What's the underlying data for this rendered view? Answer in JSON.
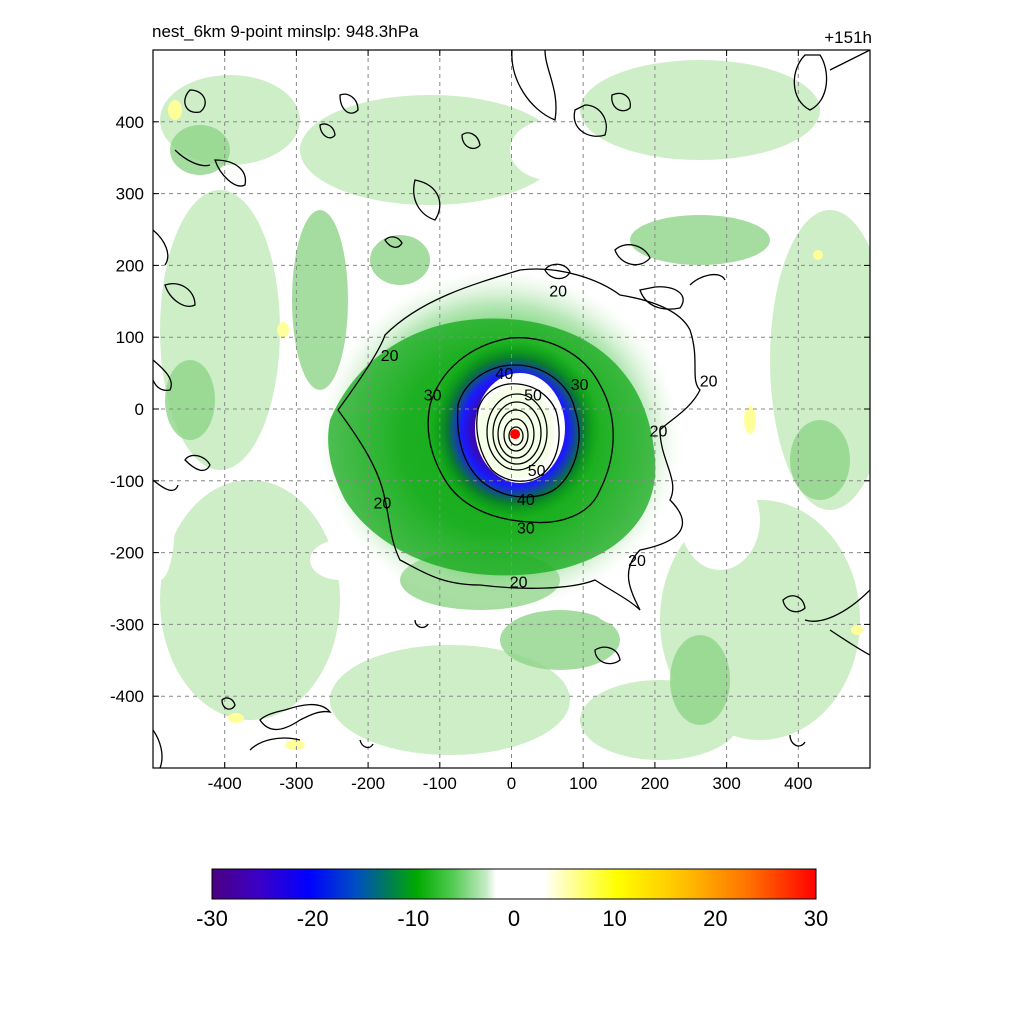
{
  "chart_data": {
    "type": "heatmap",
    "title_left": "nest_6km  9-point minslp: 948.3hPa",
    "title_right": "+151h",
    "xlabel": "",
    "ylabel": "",
    "xlim": [
      -500,
      500
    ],
    "ylim": [
      -500,
      500
    ],
    "x_ticks": [
      -400,
      -300,
      -200,
      -100,
      0,
      100,
      200,
      300,
      400
    ],
    "y_ticks": [
      400,
      300,
      200,
      100,
      0,
      -100,
      -200,
      -300,
      -400
    ],
    "grid": true,
    "center": {
      "x": 5,
      "y": -35
    },
    "shading": {
      "colorbar_ticks": [
        -30,
        -20,
        -10,
        0,
        10,
        20,
        30
      ],
      "range": [
        -30,
        30
      ],
      "colors": {
        "purple": "#4b0082",
        "blue": "#0000ff",
        "green": "#00aa00",
        "lightgreen": "#a8e0a0",
        "white": "#ffffff",
        "yellow": "#ffff00",
        "orange": "#ff9900",
        "red": "#ff0000"
      }
    },
    "contours": {
      "levels": [
        20,
        30,
        40,
        50
      ],
      "labels": [
        {
          "text": "20",
          "x": 65,
          "y": 165
        },
        {
          "text": "20",
          "x": -170,
          "y": 75
        },
        {
          "text": "20",
          "x": 275,
          "y": 40
        },
        {
          "text": "20",
          "x": 205,
          "y": -30
        },
        {
          "text": "20",
          "x": -180,
          "y": -130
        },
        {
          "text": "20",
          "x": 175,
          "y": -210
        },
        {
          "text": "20",
          "x": 10,
          "y": -240
        },
        {
          "text": "30",
          "x": -110,
          "y": 20
        },
        {
          "text": "30",
          "x": 95,
          "y": 35
        },
        {
          "text": "30",
          "x": 20,
          "y": -165
        },
        {
          "text": "40",
          "x": -10,
          "y": 50
        },
        {
          "text": "40",
          "x": 20,
          "y": -125
        },
        {
          "text": "50",
          "x": 30,
          "y": 20
        },
        {
          "text": "50",
          "x": 35,
          "y": -85
        }
      ]
    }
  }
}
